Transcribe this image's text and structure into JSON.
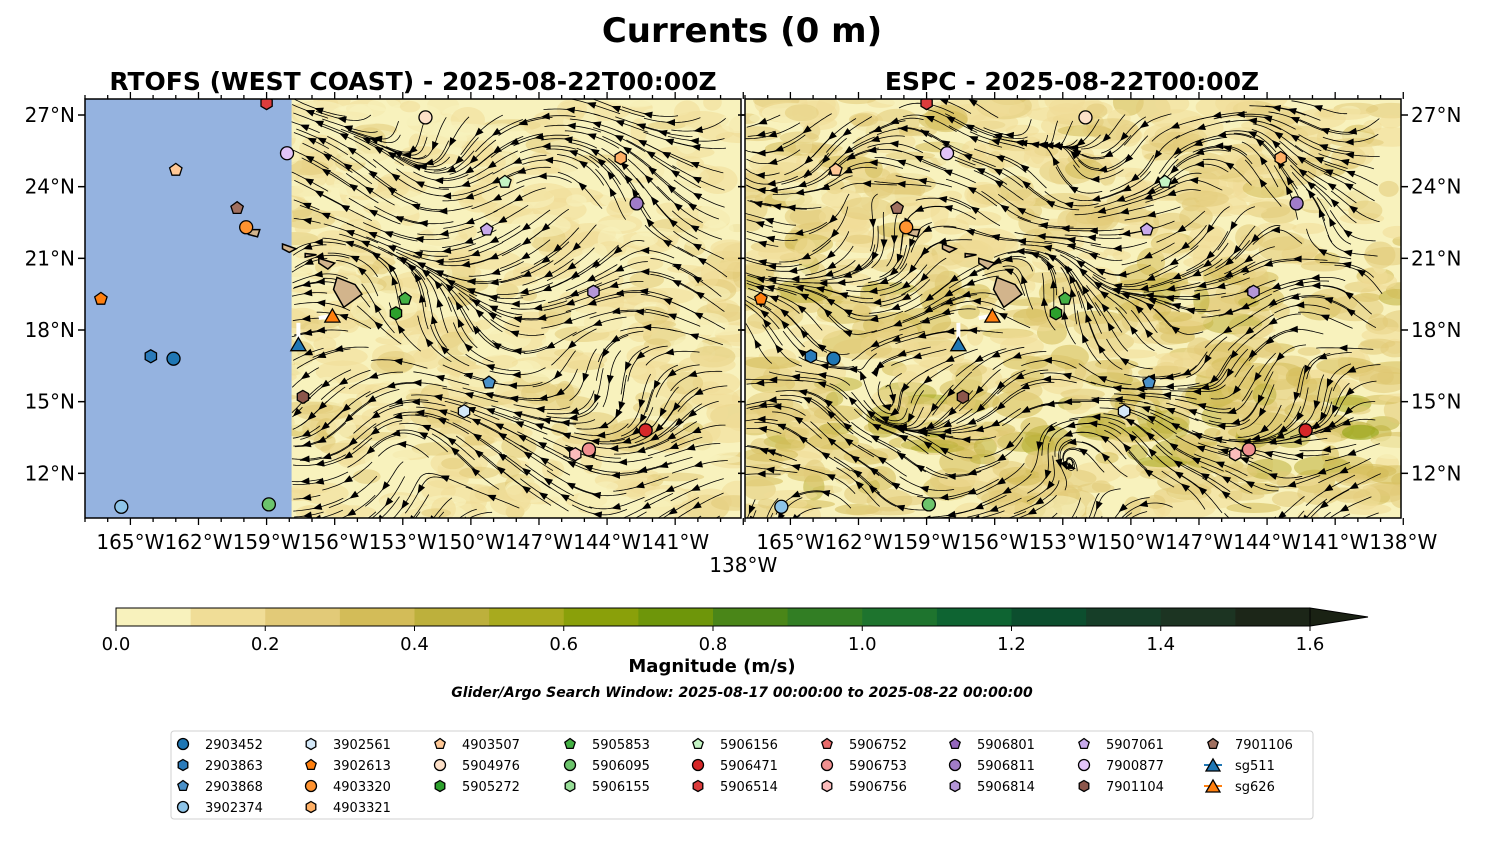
{
  "title": "Currents (0 m)",
  "panels": [
    {
      "title": "RTOFS (WEST COAST) - 2025-08-22T00:00Z",
      "model": "RTOFS",
      "domain_west_lon": -157.9,
      "base_color": "#95b3e0",
      "greenness": 0.35
    },
    {
      "title": "ESPC - 2025-08-22T00:00Z",
      "model": "ESPC",
      "greenness": 0.75
    }
  ],
  "colorbar": {
    "label": "Magnitude (m/s)",
    "ticks": [
      "0.0",
      "0.2",
      "0.4",
      "0.6",
      "0.8",
      "1.0",
      "1.2",
      "1.4",
      "1.6"
    ],
    "range": [
      0,
      1.6
    ],
    "colors": [
      "#f8f2bd",
      "#f0dd97",
      "#e2ca78",
      "#d3bc58",
      "#bdb03c",
      "#a8aa1e",
      "#8aa00a",
      "#6e960a",
      "#4a8618",
      "#327e24",
      "#1e742e",
      "#0e6432",
      "#0c4e2e",
      "#163e28",
      "#1c3422",
      "#1c2618"
    ],
    "extend_color": "#1a2214"
  },
  "search_window": "Glider/Argo Search Window: 2025-08-17 00:00:00 to 2025-08-22 00:00:00",
  "chart_data": {
    "type": "scatter",
    "subtype": "map-streamplot",
    "title": "Currents (0 m)",
    "xlim": [
      -167,
      -138.1
    ],
    "ylim": [
      10.13,
      27.67
    ],
    "xticks": [
      -165,
      -162,
      -159,
      -156,
      -153,
      -150,
      -147,
      -144,
      -141,
      -138
    ],
    "xtick_labels": [
      "165°W",
      "162°W",
      "159°W",
      "156°W",
      "153°W",
      "150°W",
      "147°W",
      "144°W",
      "141°W",
      "138°W"
    ],
    "yticks": [
      12,
      15,
      18,
      21,
      24,
      27
    ],
    "ytick_labels": [
      "12°N",
      "15°N",
      "18°N",
      "21°N",
      "24°N",
      "27°N"
    ],
    "legend_position": "bottom",
    "series": [
      {
        "name": "2903452",
        "marker": "circle",
        "color": "#1f77b4",
        "lon": -163.1,
        "lat": 16.8
      },
      {
        "name": "2903863",
        "marker": "hexagon",
        "color": "#2b7bba",
        "lon": -164.1,
        "lat": 16.9
      },
      {
        "name": "2903868",
        "marker": "pentagon",
        "color": "#4a90c8",
        "lon": -149.2,
        "lat": 15.8
      },
      {
        "name": "3902374",
        "marker": "circle",
        "color": "#8ec4e8",
        "lon": -165.4,
        "lat": 10.6
      },
      {
        "name": "3902561",
        "marker": "hexagon",
        "color": "#d4e8f8",
        "lon": -150.3,
        "lat": 14.6
      },
      {
        "name": "3902613",
        "marker": "pentagon",
        "color": "#ff7f0e",
        "lon": -166.3,
        "lat": 19.3
      },
      {
        "name": "4903320",
        "marker": "circle",
        "color": "#ff9330",
        "lon": -159.9,
        "lat": 22.3
      },
      {
        "name": "4903321",
        "marker": "hexagon",
        "color": "#ffb066",
        "lon": -143.4,
        "lat": 25.2
      },
      {
        "name": "4903507",
        "marker": "pentagon",
        "color": "#ffc896",
        "lon": -163.0,
        "lat": 24.7
      },
      {
        "name": "5904976",
        "marker": "circle",
        "color": "#fde0c8",
        "lon": -152.0,
        "lat": 26.9
      },
      {
        "name": "5905272",
        "marker": "hexagon",
        "color": "#2ca02c",
        "lon": -153.3,
        "lat": 18.7
      },
      {
        "name": "5905853",
        "marker": "pentagon",
        "color": "#44b044",
        "lon": -152.9,
        "lat": 19.3
      },
      {
        "name": "5906095",
        "marker": "circle",
        "color": "#6cc46c",
        "lon": -158.9,
        "lat": 10.7
      },
      {
        "name": "5906155",
        "marker": "hexagon",
        "color": "#98de98",
        "lon": null,
        "lat": null
      },
      {
        "name": "5906156",
        "marker": "pentagon",
        "color": "#c4f4c4",
        "lon": -148.5,
        "lat": 24.2
      },
      {
        "name": "5906471",
        "marker": "circle",
        "color": "#d62728",
        "lon": -142.3,
        "lat": 13.8
      },
      {
        "name": "5906514",
        "marker": "hexagon",
        "color": "#dc3c3c",
        "lon": -159.0,
        "lat": 27.5
      },
      {
        "name": "5906752",
        "marker": "pentagon",
        "color": "#e86a6a",
        "lon": null,
        "lat": null
      },
      {
        "name": "5906753",
        "marker": "circle",
        "color": "#f09090",
        "lon": -144.8,
        "lat": 13.0
      },
      {
        "name": "5906756",
        "marker": "hexagon",
        "color": "#fcbcbc",
        "lon": -145.4,
        "lat": 12.8
      },
      {
        "name": "5906801",
        "marker": "pentagon",
        "color": "#9467bd",
        "lon": null,
        "lat": null
      },
      {
        "name": "5906811",
        "marker": "circle",
        "color": "#a07cc8",
        "lon": -142.7,
        "lat": 23.3
      },
      {
        "name": "5906814",
        "marker": "hexagon",
        "color": "#b496d8",
        "lon": -144.6,
        "lat": 19.6
      },
      {
        "name": "5907061",
        "marker": "pentagon",
        "color": "#c8aaec",
        "lon": -149.3,
        "lat": 22.2
      },
      {
        "name": "7900877",
        "marker": "circle",
        "color": "#e2c4f8",
        "lon": -158.1,
        "lat": 25.4
      },
      {
        "name": "7901104",
        "marker": "hexagon",
        "color": "#8c564b",
        "lon": -157.4,
        "lat": 15.2
      },
      {
        "name": "7901106",
        "marker": "pentagon",
        "color": "#a07060",
        "lon": -160.3,
        "lat": 23.1
      },
      {
        "name": "sg511",
        "marker": "triangle",
        "color": "#1f77b4",
        "lon": -157.6,
        "lat": 17.4,
        "track": [
          [
            -157.6,
            18.3
          ],
          [
            -157.6,
            17.4
          ]
        ]
      },
      {
        "name": "sg626",
        "marker": "triangle",
        "color": "#ff7f0e",
        "lon": -156.1,
        "lat": 18.6,
        "track": [
          [
            -156.7,
            18.5
          ],
          [
            -156.1,
            18.6
          ]
        ]
      }
    ]
  }
}
